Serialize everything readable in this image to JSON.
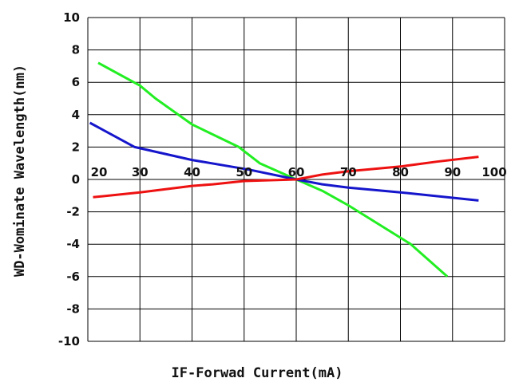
{
  "chart_data": {
    "type": "line",
    "title": "",
    "xlabel": "IF-Forwad Current(mA)",
    "ylabel": "WD-Wominate Wavelength(nm)",
    "xlim": [
      20,
      100
    ],
    "ylim": [
      -10,
      10
    ],
    "x_ticks": [
      20,
      30,
      40,
      50,
      60,
      70,
      80,
      90,
      100
    ],
    "y_ticks": [
      10,
      8,
      6,
      4,
      2,
      0,
      -2,
      -4,
      -6,
      -8,
      -10
    ],
    "grid": true,
    "series": [
      {
        "color": "#22ee22",
        "points": [
          [
            22,
            7.2
          ],
          [
            30,
            5.8
          ],
          [
            33,
            5.0
          ],
          [
            40,
            3.4
          ],
          [
            49,
            2.0
          ],
          [
            53,
            1.0
          ],
          [
            60,
            0.0
          ],
          [
            65,
            -0.7
          ],
          [
            70,
            -1.6
          ],
          [
            82,
            -4.0
          ],
          [
            89,
            -6.0
          ]
        ]
      },
      {
        "color": "#1515cc",
        "points": [
          [
            20.4,
            3.5
          ],
          [
            29,
            2.0
          ],
          [
            40,
            1.2
          ],
          [
            51,
            0.6
          ],
          [
            60,
            0.0
          ],
          [
            65,
            -0.3
          ],
          [
            70,
            -0.5
          ],
          [
            80,
            -0.8
          ],
          [
            95,
            -1.3
          ]
        ]
      },
      {
        "color": "#ee1111",
        "points": [
          [
            21,
            -1.1
          ],
          [
            30,
            -0.8
          ],
          [
            40,
            -0.4
          ],
          [
            44,
            -0.3
          ],
          [
            50,
            -0.1
          ],
          [
            60,
            0.0
          ],
          [
            65,
            0.3
          ],
          [
            70,
            0.5
          ],
          [
            80,
            0.8
          ],
          [
            87,
            1.1
          ],
          [
            95,
            1.4
          ]
        ]
      }
    ]
  }
}
